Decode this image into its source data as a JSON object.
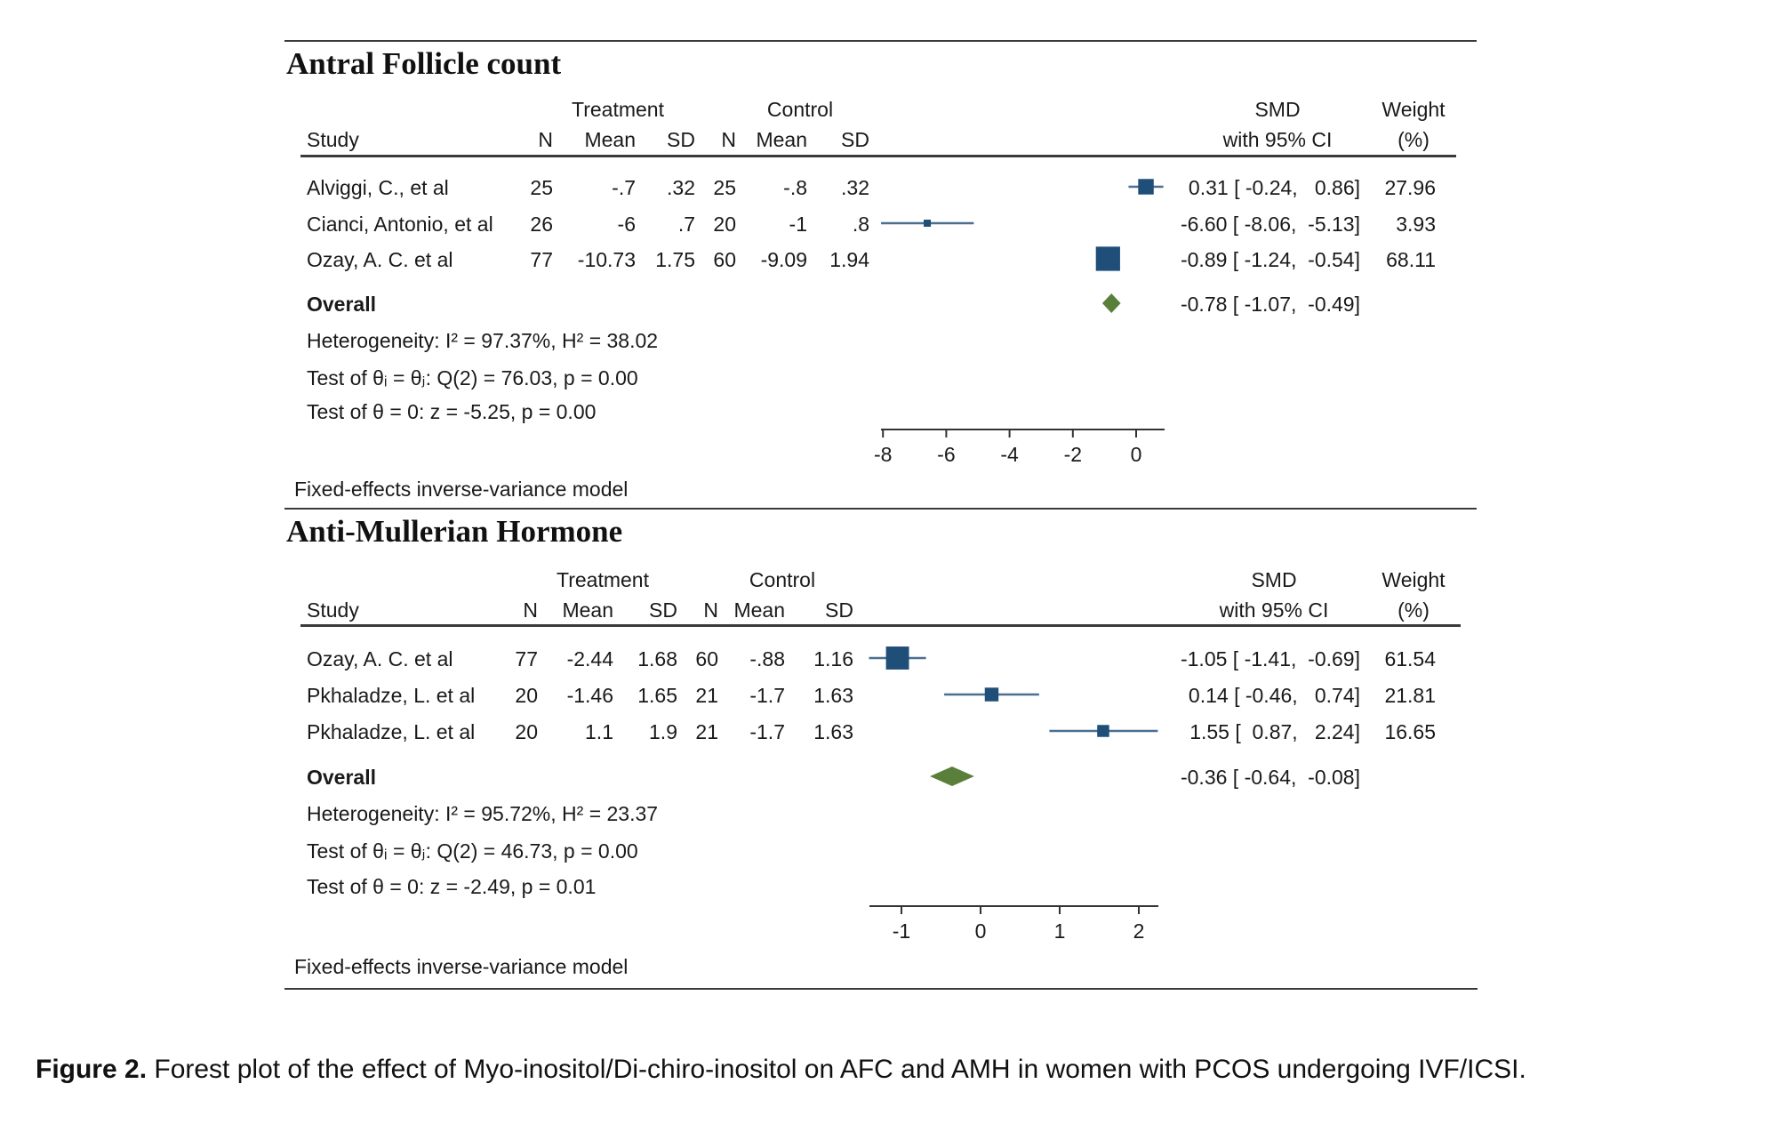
{
  "caption": {
    "label": "Figure 2.",
    "text": " Forest plot of the effect of Myo-inositol/Di-chiro-inositol on AFC and AMH in women with PCOS undergoing IVF/ICSI."
  },
  "colors": {
    "marker": "#1f4e79",
    "ci_line": "#4a6f8f",
    "overall": "#5a7f3a",
    "rule": "#3a3a3a"
  },
  "headers": {
    "treatment": "Treatment",
    "control": "Control",
    "study": "Study",
    "n": "N",
    "mean": "Mean",
    "sd": "SD",
    "smd": "SMD",
    "smd_sub": "with 95% CI",
    "weight": "Weight",
    "weight_sub": "(%)"
  },
  "chart_data": [
    {
      "type": "forest",
      "title": "Antral Follicle count",
      "xlabel": "",
      "xlim": [
        -8,
        0.9
      ],
      "xticks": [
        -8,
        -6,
        -4,
        -2,
        0
      ],
      "tick_labels": [
        "-8",
        "-6",
        "-4",
        "-2",
        "0"
      ],
      "studies": [
        {
          "name": "Alviggi, C., et al",
          "t_n": "25",
          "t_mean": "-.7",
          "t_sd": ".32",
          "c_n": "25",
          "c_mean": "-.8",
          "c_sd": ".32",
          "smd": 0.31,
          "lo": -0.24,
          "hi": 0.86,
          "ci_text": "0.31 [ -0.24,   0.86]",
          "weight": "27.96"
        },
        {
          "name": "Cianci, Antonio, et al",
          "t_n": "26",
          "t_mean": "-6",
          "t_sd": ".7",
          "c_n": "20",
          "c_mean": "-1",
          "c_sd": ".8",
          "smd": -6.6,
          "lo": -8.06,
          "hi": -5.13,
          "ci_text": "-6.60 [ -8.06,  -5.13]",
          "weight": "3.93"
        },
        {
          "name": "Ozay, A. C. et al",
          "t_n": "77",
          "t_mean": "-10.73",
          "t_sd": "1.75",
          "c_n": "60",
          "c_mean": "-9.09",
          "c_sd": "1.94",
          "smd": -0.89,
          "lo": -1.24,
          "hi": -0.54,
          "ci_text": "-0.89 [ -1.24,  -0.54]",
          "weight": "68.11"
        }
      ],
      "overall": {
        "label": "Overall",
        "smd": -0.78,
        "lo": -1.07,
        "hi": -0.49,
        "ci_text": "-0.78 [ -1.07,  -0.49]"
      },
      "stats": [
        "Heterogeneity: I² = 97.37%, H² = 38.02",
        "Test of θᵢ = θⱼ: Q(2) = 76.03, p = 0.00",
        "Test of θ = 0: z = -5.25, p = 0.00"
      ],
      "model_note": "Fixed-effects inverse-variance model"
    },
    {
      "type": "forest",
      "title": "Anti-Mullerian Hormone",
      "xlabel": "",
      "xlim": [
        -1.4,
        2.25
      ],
      "xticks": [
        -1,
        0,
        1,
        2
      ],
      "tick_labels": [
        "-1",
        "0",
        "1",
        "2"
      ],
      "studies": [
        {
          "name": "Ozay, A. C. et al",
          "t_n": "77",
          "t_mean": "-2.44",
          "t_sd": "1.68",
          "c_n": "60",
          "c_mean": "-.88",
          "c_sd": "1.16",
          "smd": -1.05,
          "lo": -1.41,
          "hi": -0.69,
          "ci_text": "-1.05 [ -1.41,  -0.69]",
          "weight": "61.54"
        },
        {
          "name": "Pkhaladze, L. et al",
          "t_n": "20",
          "t_mean": "-1.46",
          "t_sd": "1.65",
          "c_n": "21",
          "c_mean": "-1.7",
          "c_sd": "1.63",
          "smd": 0.14,
          "lo": -0.46,
          "hi": 0.74,
          "ci_text": "0.14 [ -0.46,   0.74]",
          "weight": "21.81"
        },
        {
          "name": "Pkhaladze, L. et al",
          "t_n": "20",
          "t_mean": "1.1",
          "t_sd": "1.9",
          "c_n": "21",
          "c_mean": "-1.7",
          "c_sd": "1.63",
          "smd": 1.55,
          "lo": 0.87,
          "hi": 2.24,
          "ci_text": "1.55 [  0.87,   2.24]",
          "weight": "16.65"
        }
      ],
      "overall": {
        "label": "Overall",
        "smd": -0.36,
        "lo": -0.64,
        "hi": -0.08,
        "ci_text": "-0.36 [ -0.64,  -0.08]"
      },
      "stats": [
        "Heterogeneity: I² = 95.72%, H² = 23.37",
        "Test of θᵢ = θⱼ: Q(2) = 46.73, p = 0.00",
        "Test of θ = 0: z = -2.49, p = 0.01"
      ],
      "model_note": "Fixed-effects inverse-variance model"
    }
  ]
}
